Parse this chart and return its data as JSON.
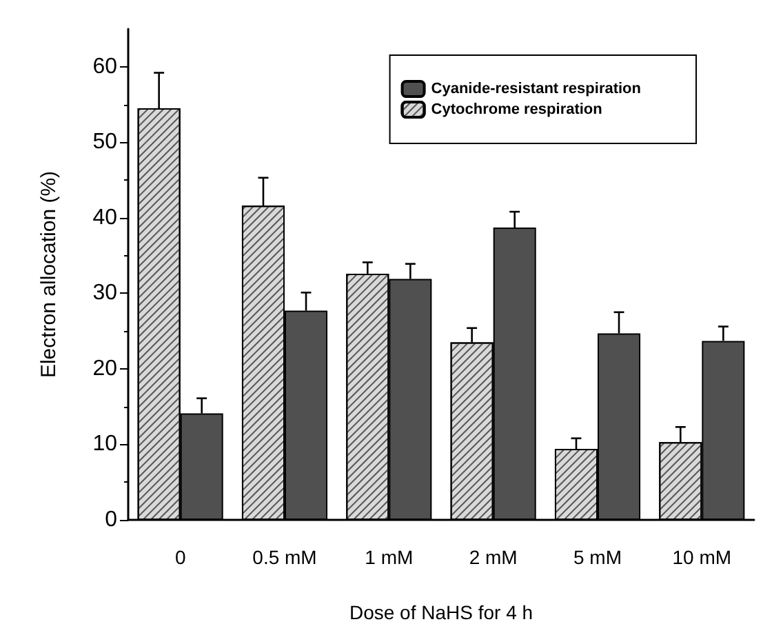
{
  "chart_data": {
    "type": "bar",
    "xlabel": "Dose of NaHS for 4 h",
    "ylabel": "Electron allocation (%)",
    "categories": [
      "0",
      "0.5 mM",
      "1 mM",
      "2 mM",
      "5 mM",
      "10 mM"
    ],
    "series": [
      {
        "name": "Cytochrome respiration",
        "color": "#d9d9d9",
        "values": [
          54.5,
          41.6,
          32.6,
          23.5,
          9.4,
          10.3
        ],
        "errors": [
          [
            54.5,
            59.2
          ],
          [
            41.6,
            45.3
          ],
          [
            32.6,
            34.1
          ],
          [
            23.5,
            25.4
          ],
          [
            9.4,
            10.8
          ],
          [
            10.3,
            12.3
          ]
        ]
      },
      {
        "name": "Cyanide-resistant respiration",
        "color": "#505050",
        "values": [
          14.1,
          27.7,
          31.9,
          38.7,
          24.7,
          23.7
        ],
        "errors": [
          [
            14.1,
            16.1
          ],
          [
            27.7,
            30.1
          ],
          [
            31.9,
            33.9
          ],
          [
            38.7,
            40.8
          ],
          [
            24.7,
            27.5
          ],
          [
            23.7,
            25.6
          ]
        ]
      }
    ],
    "ylim": [
      0,
      65
    ],
    "yticks": [
      0,
      10,
      20,
      30,
      40,
      50,
      60
    ],
    "grid": false,
    "legend": "top right"
  }
}
